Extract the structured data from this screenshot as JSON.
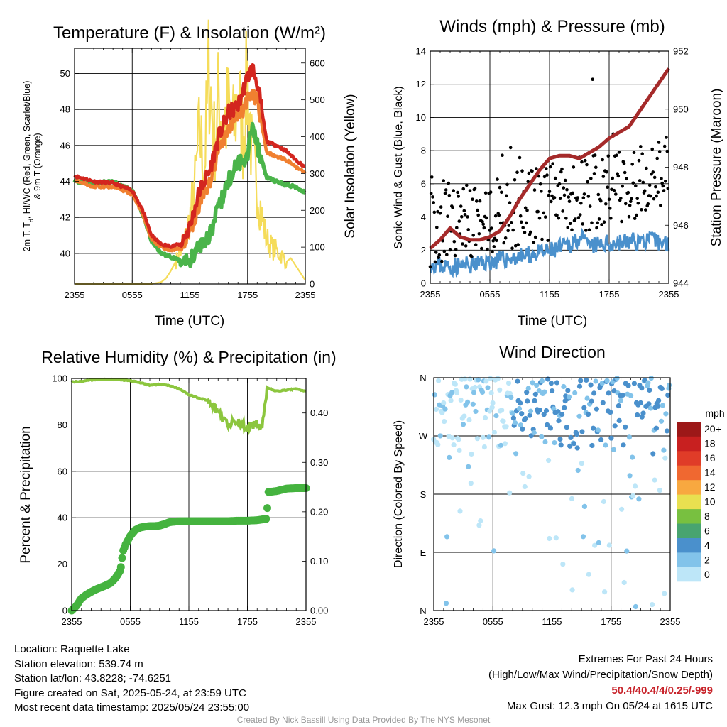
{
  "chart_data": [
    {
      "type": "line",
      "title": "Temperature (F) & Insolation (W/m²)",
      "xlabel": "Time (UTC)",
      "ylabel": "2m T, Tₐ, HI/WC (Red, Green, Scarlet/Blue) & 9m T (Orange)",
      "ylabel_line1": "2m T, T",
      "ylabel_sub": "d",
      "ylabel_line1_rest": ", HI/WC (Red, Green, Scarlet/Blue)",
      "ylabel_line2": "& 9m T (Orange)",
      "y2label": "Solar Insolation (Yellow)",
      "xticks": [
        "2355",
        "0555",
        "1155",
        "1755",
        "2355"
      ],
      "ylim": [
        38.3,
        51.4
      ],
      "yticks": [
        40,
        42,
        44,
        46,
        48,
        50
      ],
      "y2lim": [
        0,
        640
      ],
      "y2ticks": [
        0,
        100,
        200,
        300,
        400,
        500,
        600
      ],
      "x_hours": [
        0,
        2,
        4,
        6,
        7,
        8,
        9,
        10,
        11,
        12,
        13,
        14,
        15,
        16,
        17,
        18,
        18.5,
        19,
        20,
        21,
        22,
        23,
        24
      ],
      "series": [
        {
          "name": "2m T",
          "color": "#d3261f",
          "values": [
            44.3,
            44.0,
            43.9,
            43.5,
            42.5,
            41.0,
            40.5,
            40.4,
            40.5,
            41.5,
            43.5,
            44.5,
            46.5,
            47.8,
            48.2,
            49.8,
            50.3,
            49.5,
            46.2,
            46.0,
            45.7,
            45.2,
            44.8
          ]
        },
        {
          "name": "9m T",
          "color": "#f08030",
          "values": [
            44.1,
            43.7,
            43.7,
            43.3,
            42.3,
            40.8,
            40.3,
            40.2,
            40.3,
            41.2,
            42.8,
            43.8,
            45.8,
            47.0,
            47.5,
            48.5,
            49.0,
            48.5,
            45.6,
            45.4,
            45.2,
            44.8,
            44.5
          ]
        },
        {
          "name": "Td",
          "color": "#4ab44a",
          "values": [
            44.0,
            43.9,
            44.0,
            43.5,
            42.3,
            40.7,
            40.0,
            39.8,
            39.6,
            39.6,
            40.5,
            41.0,
            42.5,
            44.0,
            45.0,
            45.5,
            47.3,
            46.0,
            44.2,
            44.0,
            43.8,
            43.7,
            43.4
          ]
        }
      ],
      "solar": {
        "name": "Solar Insolation",
        "color": "#f5dc5a",
        "x_hours": [
          0,
          8,
          9,
          9.5,
          10,
          10.5,
          11,
          11.5,
          12,
          12.5,
          13,
          13.5,
          14,
          14.5,
          15,
          15.5,
          16,
          16.5,
          17,
          17.5,
          18,
          18.5,
          19,
          19.5,
          20,
          20.5,
          21,
          21.5,
          22,
          22.5,
          23,
          23.5,
          24
        ],
        "values": [
          0,
          0,
          5,
          15,
          35,
          60,
          85,
          120,
          180,
          260,
          410,
          310,
          600,
          380,
          500,
          430,
          470,
          410,
          520,
          400,
          560,
          320,
          270,
          180,
          120,
          100,
          90,
          80,
          60,
          70,
          50,
          30,
          10
        ]
      }
    },
    {
      "type": "scatter",
      "title": "Winds (mph) & Pressure (mb)",
      "xlabel": "Time (UTC)",
      "ylabel": "Sonic Wind & Gust (Blue, Black)",
      "y2label": "Station Pressure (Maroon)",
      "xticks": [
        "2355",
        "0555",
        "1155",
        "1755",
        "2355"
      ],
      "ylim": [
        0,
        14
      ],
      "yticks": [
        0,
        2,
        4,
        6,
        8,
        10,
        12,
        14
      ],
      "y2lim": [
        944,
        952
      ],
      "y2ticks": [
        944,
        946,
        948,
        950,
        952
      ],
      "wind": {
        "name": "Sonic Wind",
        "color": "#4a90cc",
        "x_hours": [
          0,
          2,
          4,
          6,
          8,
          10,
          12,
          14,
          15,
          16,
          18,
          20,
          22,
          24
        ],
        "values": [
          1.2,
          1.0,
          1.1,
          1.3,
          1.5,
          1.7,
          1.9,
          2.3,
          2.8,
          2.2,
          2.4,
          2.5,
          2.6,
          2.4
        ]
      },
      "gust_summary": {
        "name": "Gust",
        "color": "#000000",
        "max": 12.3,
        "max_hour": 16.33
      },
      "pressure": {
        "name": "Station Pressure",
        "color": "#a52a2a",
        "x_hours": [
          0,
          1,
          2,
          3,
          4,
          5,
          6,
          7,
          8,
          9,
          10,
          11,
          12,
          13,
          14,
          15,
          16,
          17,
          18,
          19,
          20,
          21,
          22,
          23,
          24
        ],
        "values": [
          945.2,
          945.5,
          945.9,
          945.6,
          945.5,
          945.5,
          945.6,
          945.8,
          946.3,
          946.9,
          947.4,
          947.9,
          948.3,
          948.4,
          948.4,
          948.3,
          948.5,
          948.7,
          949.0,
          949.2,
          949.4,
          949.9,
          950.4,
          950.9,
          951.4
        ]
      }
    },
    {
      "type": "line",
      "title": "Relative Humidity (%) & Precipitation (in)",
      "ylabel": "Percent & Precipitation",
      "xticks": [
        "2355",
        "0555",
        "1155",
        "1755",
        "2355"
      ],
      "ylim": [
        0,
        100
      ],
      "yticks": [
        0,
        20,
        40,
        60,
        80,
        100
      ],
      "y2lim": [
        0,
        0.47
      ],
      "y2ticks": [
        "0.00",
        "0.10",
        "0.20",
        "0.30",
        "0.40"
      ],
      "rh": {
        "name": "Relative Humidity",
        "color": "#8cc63e",
        "x_hours": [
          0,
          1,
          2,
          3,
          4,
          5,
          6,
          7,
          8,
          9,
          10,
          11,
          12,
          13,
          14,
          15,
          16,
          17,
          18,
          19,
          19.5,
          20,
          21,
          22,
          23,
          24
        ],
        "values": [
          98.5,
          98.8,
          99.3,
          99.5,
          99.6,
          99.4,
          99.0,
          98.2,
          97.0,
          97.5,
          97.0,
          95.5,
          93.0,
          91.5,
          90.5,
          85.0,
          80.0,
          82.0,
          78.5,
          81.0,
          79.0,
          96.0,
          94.5,
          95.0,
          95.5,
          94.5
        ]
      },
      "precip": {
        "name": "Precipitation",
        "color": "#45b33f",
        "x_hours": [
          0,
          0.5,
          1,
          1.5,
          2,
          2.5,
          3,
          3.5,
          4,
          4.5,
          5,
          5.25,
          5.5,
          6,
          6.5,
          7,
          7.5,
          8,
          8.5,
          9,
          9.5,
          10,
          10.5,
          11,
          12,
          13,
          14,
          15,
          16,
          17,
          18,
          19,
          20,
          20.1,
          21,
          22,
          23,
          24
        ],
        "values": [
          0.0,
          0.01,
          0.025,
          0.032,
          0.038,
          0.043,
          0.047,
          0.051,
          0.056,
          0.066,
          0.082,
          0.12,
          0.133,
          0.151,
          0.163,
          0.168,
          0.17,
          0.171,
          0.171,
          0.172,
          0.175,
          0.179,
          0.18,
          0.181,
          0.181,
          0.181,
          0.181,
          0.181,
          0.181,
          0.182,
          0.182,
          0.183,
          0.186,
          0.24,
          0.242,
          0.247,
          0.248,
          0.248
        ]
      }
    },
    {
      "type": "scatter",
      "title": "Wind Direction",
      "ylabel": "Direction (Colored By Speed)",
      "xticks": [
        "2355",
        "0555",
        "1155",
        "1755",
        "2355"
      ],
      "yticks": [
        "N",
        "E",
        "S",
        "W",
        "N"
      ],
      "ylim": [
        0,
        360
      ],
      "colorbar": {
        "title": "mph",
        "labels": [
          "0",
          "2",
          "4",
          "6",
          "8",
          "10",
          "12",
          "14",
          "16",
          "18",
          "20+"
        ],
        "colors": [
          "#bde6f8",
          "#82c3ea",
          "#4a90cc",
          "#48a470",
          "#78c040",
          "#e8e050",
          "#f8a840",
          "#f06830",
          "#e03c28",
          "#c82020",
          "#9c1818"
        ]
      }
    }
  ],
  "info": {
    "location": "Location: Raquette Lake",
    "elevation": "Station elevation: 539.74 m",
    "latlon": "Station lat/lon: 43.8228; -74.6251",
    "created": "Figure created on Sat, 2025-05-24, at 23:59 UTC",
    "recent": "Most recent data timestamp: 2025/05/24 23:55:00"
  },
  "extremes": {
    "title": "Extremes For Past 24 Hours",
    "subtitle": "(High/Low/Max Wind/Precipitation/Snow Depth)",
    "values": "50.4/40.4/4/0.25/-999",
    "gust": "Max Gust: 12.3 mph On 05/24 at 1615 UTC"
  },
  "credit": "Created By Nick Bassill Using Data Provided By The NYS Mesonet"
}
